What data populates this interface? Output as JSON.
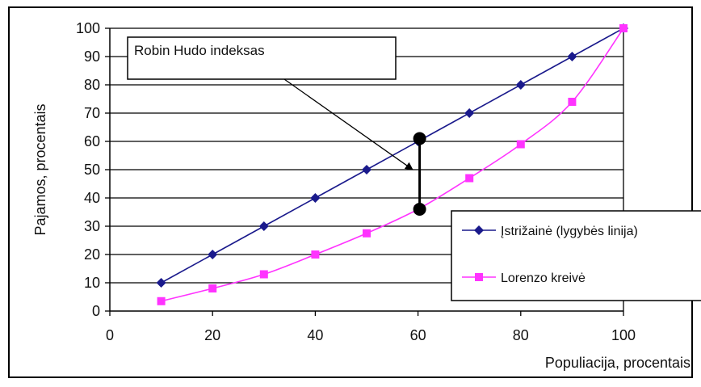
{
  "chart_data": {
    "type": "line",
    "xlabel": "Populiacija, procentais",
    "ylabel": "Pajamos, procentais",
    "xlim": [
      0,
      100
    ],
    "ylim": [
      0,
      100
    ],
    "x_ticks": [
      0,
      20,
      40,
      60,
      80,
      100
    ],
    "y_ticks": [
      0,
      10,
      20,
      30,
      40,
      50,
      60,
      70,
      80,
      90,
      100
    ],
    "grid": "horizontal",
    "legend": "right",
    "series": [
      {
        "name": "Įstrižainė (lygybės linija)",
        "color": "#1a1a8c",
        "marker": "diamond",
        "x": [
          10,
          20,
          30,
          40,
          50,
          60,
          70,
          80,
          90,
          100
        ],
        "y": [
          10,
          20,
          30,
          40,
          50,
          60,
          70,
          80,
          90,
          100
        ]
      },
      {
        "name": "Lorenzo kreivė",
        "color": "#ff33ff",
        "marker": "square",
        "x": [
          10,
          20,
          30,
          40,
          50,
          60,
          70,
          80,
          90,
          100
        ],
        "y": [
          3.5,
          8,
          13,
          20,
          27.5,
          36,
          47,
          59,
          74,
          100
        ]
      }
    ],
    "annotation": {
      "text": "Robin Hudo indeksas",
      "segment": {
        "x": 60,
        "y_top": 61,
        "y_bottom": 36
      }
    }
  }
}
